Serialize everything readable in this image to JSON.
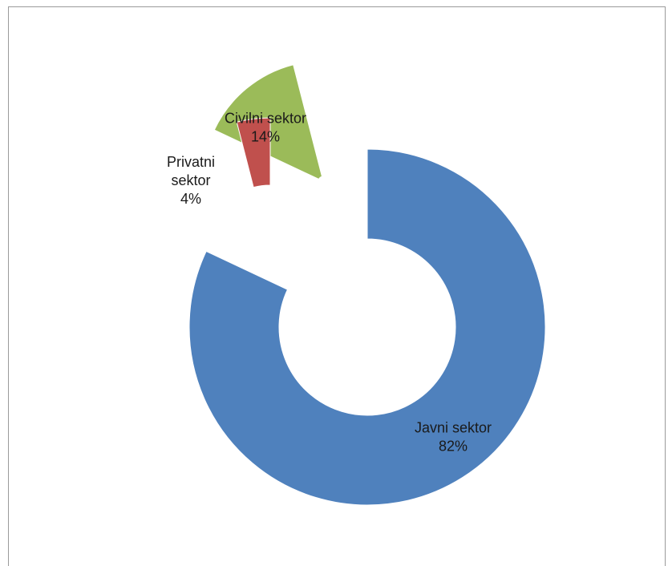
{
  "chart_data": {
    "type": "pie",
    "style": "exploded-doughnut",
    "categories": [
      "Javni sektor",
      "Civilni sektor",
      "Privatni sektor"
    ],
    "values": [
      82,
      14,
      4
    ],
    "value_labels": [
      "82%",
      "14%",
      "4%"
    ],
    "label_lines": [
      [
        "Javni sektor",
        "82%"
      ],
      [
        "Civilni sektor",
        "14%"
      ],
      [
        "Privatni",
        "sektor",
        "4%"
      ]
    ],
    "colors": [
      "#4f81bd",
      "#9bbb59",
      "#c0504d"
    ],
    "title": "",
    "legend": "none",
    "grid": false
  }
}
